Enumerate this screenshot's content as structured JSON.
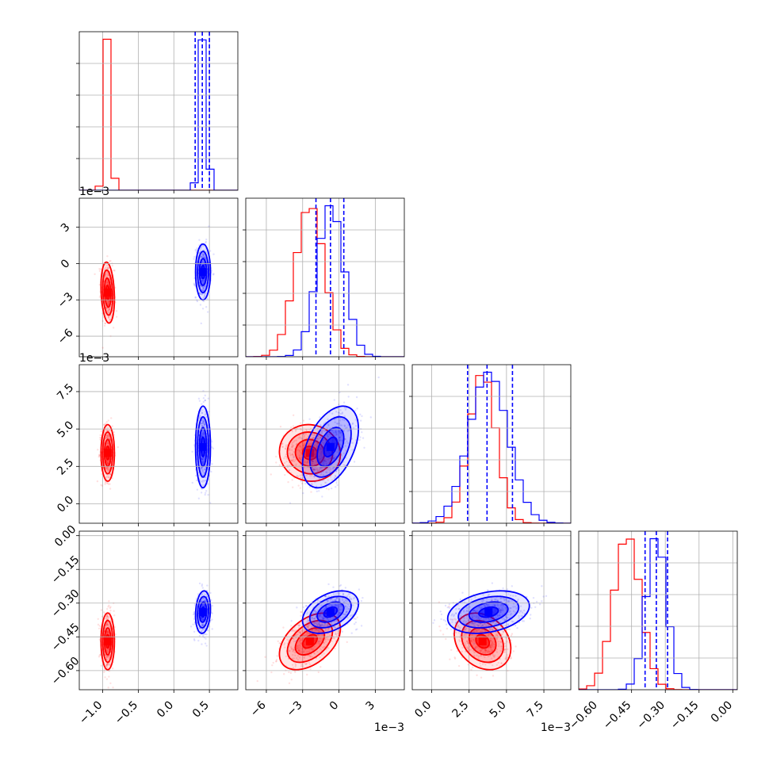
{
  "chart_data": {
    "type": "scatter",
    "subtype": "corner plot (pairwise 2D density contours with 1D marginal histograms)",
    "n_params": 4,
    "grid": true,
    "series": [
      {
        "color": "#ff0000",
        "mean": [
          -0.93,
          -0.0024,
          0.0034,
          -0.47
        ],
        "std": [
          0.045,
          0.0012,
          0.0009,
          0.06
        ],
        "corr": {
          "0-1": -0.2,
          "0-2": 0.0,
          "0-3": 0.0,
          "1-2": -0.05,
          "1-3": 0.45,
          "2-3": -0.25
        }
      },
      {
        "color": "#0000ff",
        "mean": [
          0.41,
          -0.0007,
          0.0038,
          -0.34
        ],
        "std": [
          0.05,
          0.0011,
          0.0013,
          0.045
        ],
        "corr": {
          "0-1": 0.0,
          "0-2": 0.0,
          "0-3": 0.15,
          "1-2": 0.45,
          "1-3": 0.4,
          "2-3": 0.3
        }
      }
    ],
    "quantile_lines": {
      "color": "#0000ff",
      "style": "dashed",
      "values": [
        [
          0.3,
          0.4,
          0.5
        ],
        [
          -0.0019,
          -0.0007,
          0.0004
        ],
        [
          0.0024,
          0.0037,
          0.0054
        ],
        [
          -0.39,
          -0.34,
          -0.29
        ]
      ]
    },
    "ranges": [
      [
        -1.33,
        0.9
      ],
      [
        -0.0077,
        0.0054
      ],
      [
        -0.0013,
        0.0093
      ],
      [
        -0.685,
        0.02
      ]
    ],
    "ticks": [
      {
        "values": [
          -1.0,
          -0.5,
          0.0,
          0.5
        ],
        "labels": [
          "−1.0",
          "−0.5",
          "0.0",
          "0.5"
        ]
      },
      {
        "values": [
          -0.006,
          -0.003,
          0.0,
          0.003
        ],
        "labels": [
          "−6",
          "−3",
          "0",
          "3"
        ],
        "offset": "1e−3"
      },
      {
        "values": [
          0.0,
          0.0025,
          0.005,
          0.0075
        ],
        "labels": [
          "0.0",
          "2.5",
          "5.0",
          "7.5"
        ],
        "offset": "1e−3"
      },
      {
        "values": [
          -0.6,
          -0.45,
          -0.3,
          -0.15,
          0.0
        ],
        "labels": [
          "−0.60",
          "−0.45",
          "−0.30",
          "−0.15",
          "0.00"
        ]
      }
    ],
    "offset_labels": {
      "x_param1": "1e−3",
      "x_param2": "1e−3",
      "y_param1": "1e−3",
      "y_param2": "1e−3"
    },
    "colors": {
      "red": "#ff0000",
      "blue": "#0000ff",
      "grid": "#b0b0b0"
    }
  }
}
